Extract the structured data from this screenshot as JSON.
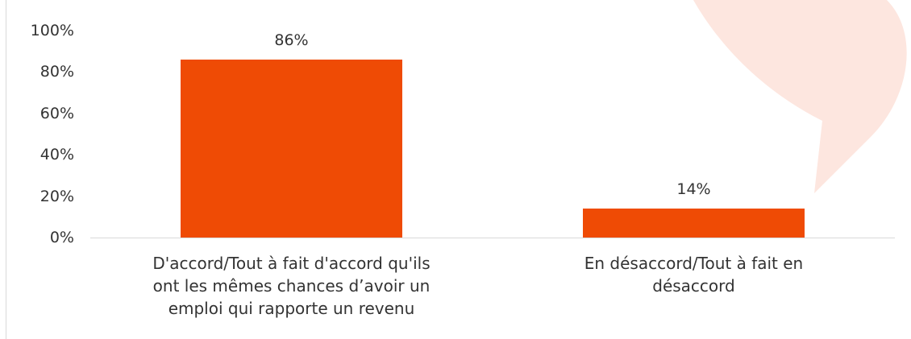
{
  "chart_data": {
    "type": "bar",
    "categories": [
      "D'accord/Tout à fait d'accord qu'ils ont les mêmes chances d’avoir un emploi qui rapporte un revenu",
      "En désaccord/Tout à fait en désaccord"
    ],
    "values": [
      86,
      14
    ],
    "value_labels": [
      "86%",
      "14%"
    ],
    "color": "#ef4b05",
    "ylim": [
      0,
      100
    ],
    "yticks": [
      {
        "value": 0,
        "label": "0%"
      },
      {
        "value": 20,
        "label": "20%"
      },
      {
        "value": 40,
        "label": "40%"
      },
      {
        "value": 60,
        "label": "60%"
      },
      {
        "value": 80,
        "label": "80%"
      },
      {
        "value": 100,
        "label": "100%"
      }
    ],
    "grid": false
  }
}
